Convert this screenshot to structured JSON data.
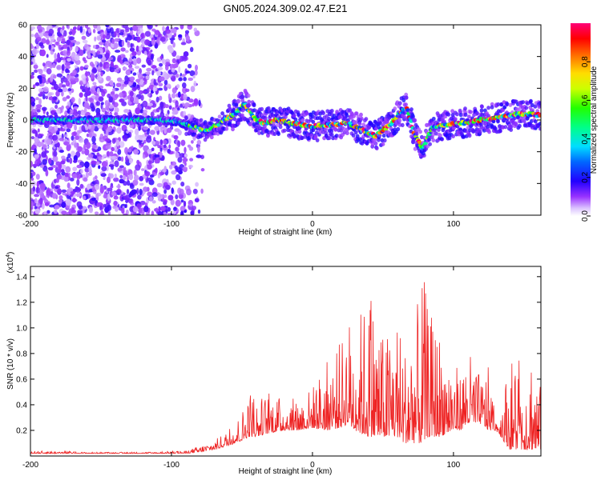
{
  "title": "GN05.2024.309.02.47.E21",
  "colors": {
    "signal": "#ee2222",
    "frame": "#000000"
  },
  "chart_data": [
    {
      "type": "heatmap",
      "xlabel": "Height of straight line (km)",
      "ylabel": "Frequency (Hz)",
      "xlim": [
        -200,
        162
      ],
      "ylim": [
        -60,
        60
      ],
      "xticks": [
        -200,
        -100,
        0,
        100
      ],
      "xtick_labels": [
        "-200",
        "-100",
        "0",
        "100"
      ],
      "yticks": [
        60,
        40,
        20,
        0,
        -20,
        -40,
        -60
      ],
      "ytick_labels": [
        "60",
        "40",
        "20",
        "0",
        "-20",
        "-40",
        "-60"
      ],
      "colorbar": {
        "label": "Normalized spectral amplitude",
        "range": [
          0,
          1
        ],
        "ticks": [
          0.0,
          0.2,
          0.4,
          0.6,
          0.8
        ],
        "tick_labels": [
          "0.0",
          "0.2",
          "0.4",
          "0.6",
          "0.8"
        ],
        "colors": [
          "#ffffff",
          "#cc99ff",
          "#7700ff",
          "#0000ff",
          "#00ddff",
          "#00ff44",
          "#ffff00",
          "#ff7700",
          "#ff0000",
          "#ff0066"
        ]
      },
      "dominant_ridge": {
        "x": [
          -200,
          -150,
          -110,
          -95,
          -85,
          -75,
          -65,
          -55,
          -48,
          -42,
          -35,
          -25,
          -15,
          0,
          15,
          25,
          35,
          45,
          55,
          62,
          67,
          72,
          78,
          85,
          95,
          105,
          120,
          135,
          150,
          162
        ],
        "y": [
          0,
          0,
          0,
          -1,
          -4,
          -7,
          -2,
          4,
          10,
          2,
          -2,
          0,
          -2,
          -4,
          -3,
          -2,
          -6,
          -10,
          -3,
          4,
          8,
          -8,
          -18,
          -5,
          -3,
          -2,
          0,
          2,
          4,
          3
        ]
      },
      "noise_region_x": [
        -200,
        -80
      ]
    },
    {
      "type": "line",
      "xlabel": "Height of straight line (km)",
      "ylabel": "SNR (10 * v/v)",
      "scale_label": "(x10",
      "scale_exponent": "4",
      "xlim": [
        -200,
        162
      ],
      "ylim": [
        0,
        1.48
      ],
      "xticks": [
        -200,
        -100,
        0,
        100
      ],
      "xtick_labels": [
        "-200",
        "-100",
        "0",
        "100"
      ],
      "yticks": [
        0.2,
        0.4,
        0.6,
        0.8,
        1.0,
        1.2,
        1.4
      ],
      "ytick_labels": [
        "0.2",
        "0.4",
        "0.6",
        "0.8",
        "1.0",
        "1.2",
        "1.4"
      ],
      "series": [
        {
          "x": [
            -200,
            -180,
            -160,
            -140,
            -120,
            -100,
            -90,
            -80,
            -70,
            -60,
            -50,
            -45,
            -40,
            -30,
            -20,
            -10,
            0,
            10,
            20,
            25,
            30,
            40,
            43,
            50,
            55,
            60,
            65,
            70,
            75,
            78,
            82,
            90,
            100,
            105,
            110,
            120,
            125,
            130,
            140,
            145,
            150,
            155,
            160,
            162
          ],
          "peak": [
            0.04,
            0.04,
            0.03,
            0.03,
            0.03,
            0.04,
            0.04,
            0.08,
            0.12,
            0.2,
            0.35,
            0.55,
            0.45,
            0.5,
            0.45,
            0.45,
            0.55,
            0.75,
            0.9,
            1.12,
            1.05,
            1.3,
            1.25,
            0.95,
            1.0,
            1.15,
            0.85,
            1.1,
            1.2,
            1.48,
            1.15,
            1.0,
            0.75,
            0.65,
            0.85,
            0.6,
            0.7,
            0.3,
            0.75,
            0.85,
            0.65,
            0.92,
            0.6,
            0.55
          ],
          "base": [
            0.02,
            0.02,
            0.02,
            0.02,
            0.02,
            0.02,
            0.02,
            0.03,
            0.05,
            0.08,
            0.12,
            0.15,
            0.15,
            0.18,
            0.2,
            0.2,
            0.22,
            0.2,
            0.22,
            0.25,
            0.2,
            0.15,
            0.15,
            0.15,
            0.15,
            0.15,
            0.1,
            0.1,
            0.1,
            0.1,
            0.15,
            0.15,
            0.2,
            0.2,
            0.25,
            0.25,
            0.2,
            0.2,
            0.05,
            0.05,
            0.05,
            0.05,
            0.05,
            0.05
          ]
        }
      ]
    }
  ]
}
